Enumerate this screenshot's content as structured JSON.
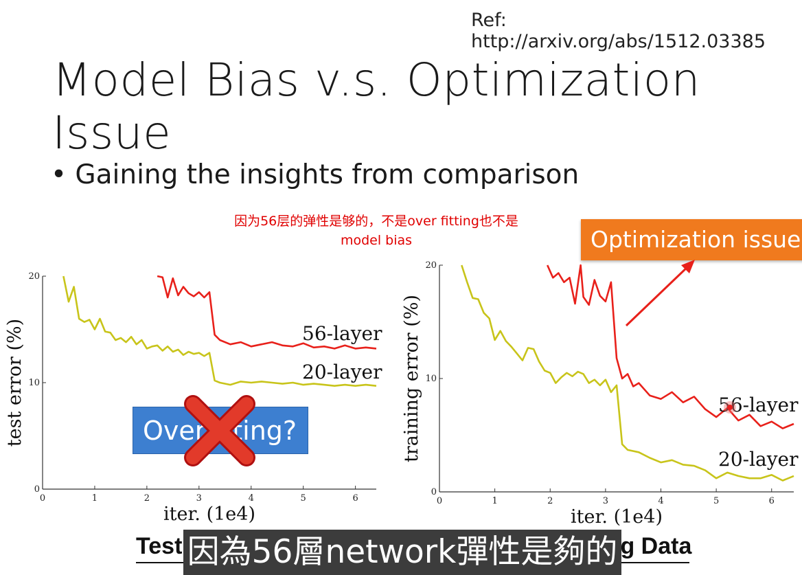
{
  "slide": {
    "reference": "Ref: http://arxiv.org/abs/1512.03385",
    "title": "Model Bias v.s. Optimization Issue",
    "bullet": "• Gaining the insights from comparison",
    "annotation_line1": "因为56层的弹性是够的，不是over fitting也不是",
    "annotation_line2": "model bias",
    "optimization_label": "Optimization issue",
    "overfitting_label": "Overfitting?",
    "left_caption": "Testing Data",
    "right_caption": "Training Data",
    "subtitle": "因為56層network彈性是夠的",
    "colors": {
      "orange": "#f07a1e",
      "blue": "#3d7fd0",
      "red": "#e8201a",
      "olive": "#c8c41a"
    }
  },
  "chart_data": [
    {
      "type": "line",
      "xlabel": "iter. (1e4)",
      "ylabel": "test error (%)",
      "xlim": [
        0,
        6.4
      ],
      "ylim": [
        0,
        20
      ],
      "xticks": [
        "0",
        "1",
        "2",
        "3",
        "4",
        "5",
        "6"
      ],
      "yticks": [
        "0",
        "10",
        "20"
      ],
      "series": [
        {
          "name": "56-layer",
          "color": "#e8201a",
          "x": [
            2.2,
            2.3,
            2.4,
            2.5,
            2.6,
            2.7,
            2.8,
            2.9,
            3.0,
            3.1,
            3.2,
            3.3,
            3.4,
            3.6,
            3.8,
            4.0,
            4.2,
            4.4,
            4.6,
            4.8,
            5.0,
            5.2,
            5.4,
            5.6,
            5.8,
            6.0,
            6.2,
            6.4
          ],
          "y": [
            20,
            19.9,
            18.0,
            19.8,
            18.2,
            19.0,
            18.4,
            18.1,
            18.5,
            18.0,
            18.5,
            14.5,
            14.0,
            13.6,
            13.8,
            13.4,
            13.6,
            13.8,
            13.5,
            13.4,
            13.7,
            13.3,
            13.4,
            13.2,
            13.5,
            13.2,
            13.3,
            13.2
          ]
        },
        {
          "name": "20-layer",
          "color": "#c8c41a",
          "x": [
            0.4,
            0.5,
            0.6,
            0.7,
            0.8,
            0.9,
            1.0,
            1.1,
            1.2,
            1.3,
            1.4,
            1.5,
            1.6,
            1.7,
            1.8,
            1.9,
            2.0,
            2.1,
            2.2,
            2.3,
            2.4,
            2.5,
            2.6,
            2.7,
            2.8,
            2.9,
            3.0,
            3.1,
            3.2,
            3.3,
            3.4,
            3.6,
            3.8,
            4.0,
            4.2,
            4.4,
            4.6,
            4.8,
            5.0,
            5.2,
            5.4,
            5.6,
            5.8,
            6.0,
            6.2,
            6.4
          ],
          "y": [
            20,
            17.6,
            19.0,
            16.0,
            15.7,
            15.9,
            15.0,
            16.0,
            14.8,
            14.7,
            14.0,
            14.2,
            13.8,
            14.3,
            13.6,
            14.0,
            13.2,
            13.4,
            13.5,
            13.0,
            13.4,
            12.9,
            13.1,
            12.6,
            12.9,
            12.7,
            12.8,
            12.5,
            12.8,
            10.2,
            10.0,
            9.8,
            10.1,
            10.0,
            10.1,
            10.0,
            9.9,
            10.0,
            9.8,
            9.9,
            9.8,
            9.7,
            9.8,
            9.7,
            9.8,
            9.7
          ]
        }
      ]
    },
    {
      "type": "line",
      "xlabel": "iter. (1e4)",
      "ylabel": "training error (%)",
      "xlim": [
        0,
        6.4
      ],
      "ylim": [
        0,
        20
      ],
      "xticks": [
        "0",
        "1",
        "2",
        "3",
        "4",
        "5",
        "6"
      ],
      "yticks": [
        "0",
        "10",
        "20"
      ],
      "series": [
        {
          "name": "56-layer",
          "color": "#e8201a",
          "x": [
            1.95,
            2.05,
            2.15,
            2.25,
            2.35,
            2.45,
            2.55,
            2.6,
            2.7,
            2.8,
            2.9,
            3.0,
            3.1,
            3.2,
            3.3,
            3.4,
            3.5,
            3.6,
            3.8,
            4.0,
            4.2,
            4.4,
            4.6,
            4.8,
            5.0,
            5.2,
            5.4,
            5.6,
            5.8,
            6.0,
            6.2,
            6.4
          ],
          "y": [
            20,
            18.9,
            19.3,
            18.5,
            18.9,
            16.6,
            20.0,
            17.2,
            16.5,
            18.7,
            17.3,
            16.8,
            18.5,
            11.8,
            10.0,
            10.4,
            9.3,
            9.6,
            8.5,
            8.2,
            8.8,
            7.9,
            8.4,
            7.3,
            6.6,
            7.4,
            6.3,
            6.8,
            5.8,
            6.2,
            5.6,
            6.0
          ]
        },
        {
          "name": "20-layer",
          "color": "#c8c41a",
          "x": [
            0.4,
            0.5,
            0.6,
            0.7,
            0.8,
            0.9,
            1.0,
            1.1,
            1.2,
            1.3,
            1.4,
            1.5,
            1.6,
            1.7,
            1.8,
            1.9,
            2.0,
            2.1,
            2.2,
            2.3,
            2.4,
            2.5,
            2.6,
            2.7,
            2.8,
            2.9,
            3.0,
            3.1,
            3.2,
            3.3,
            3.4,
            3.6,
            3.8,
            4.0,
            4.2,
            4.4,
            4.6,
            4.8,
            5.0,
            5.2,
            5.4,
            5.6,
            5.8,
            6.0,
            6.2,
            6.4
          ],
          "y": [
            20,
            18.5,
            17.1,
            17.0,
            15.8,
            15.3,
            13.4,
            14.2,
            13.3,
            12.8,
            12.2,
            11.6,
            12.7,
            12.6,
            11.5,
            10.7,
            10.5,
            9.6,
            10.1,
            10.5,
            10.2,
            10.6,
            10.4,
            9.6,
            9.9,
            9.4,
            9.9,
            8.8,
            9.4,
            4.2,
            3.7,
            3.5,
            3.0,
            2.6,
            2.8,
            2.4,
            2.3,
            1.9,
            1.2,
            1.7,
            1.4,
            1.2,
            1.2,
            1.5,
            1.0,
            1.4
          ]
        }
      ]
    }
  ]
}
